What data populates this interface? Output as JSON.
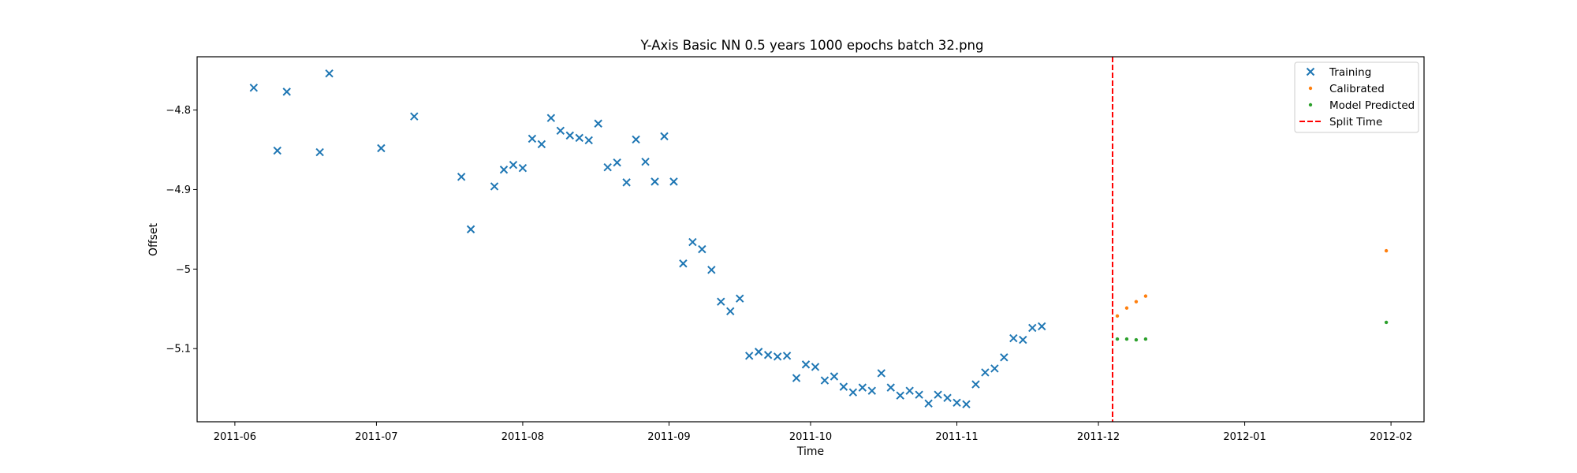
{
  "chart_data": {
    "type": "scatter",
    "title": "Y-Axis Basic NN 0.5 years 1000 epochs batch 32.png",
    "xlabel": "Time",
    "ylabel": "Offset",
    "x_ticks": [
      "2011-06",
      "2011-07",
      "2011-08",
      "2011-09",
      "2011-10",
      "2011-11",
      "2011-12",
      "2012-01",
      "2012-02"
    ],
    "y_ticks": [
      -4.8,
      -4.9,
      -5.0,
      -5.1
    ],
    "xlim": [
      "2011-05-24",
      "2012-02-08"
    ],
    "ylim": [
      -5.192,
      -4.733
    ],
    "grid": false,
    "legend_position": "top-right",
    "split_time": "2011-12-04",
    "series": [
      {
        "name": "Training",
        "marker": "x",
        "color": "#1f77b4",
        "points": [
          [
            "2011-06-05",
            -4.772
          ],
          [
            "2011-06-10",
            -4.851
          ],
          [
            "2011-06-12",
            -4.777
          ],
          [
            "2011-06-19",
            -4.853
          ],
          [
            "2011-06-21",
            -4.754
          ],
          [
            "2011-07-02",
            -4.848
          ],
          [
            "2011-07-09",
            -4.808
          ],
          [
            "2011-07-19",
            -4.884
          ],
          [
            "2011-07-21",
            -4.95
          ],
          [
            "2011-07-26",
            -4.896
          ],
          [
            "2011-07-28",
            -4.875
          ],
          [
            "2011-07-30",
            -4.869
          ],
          [
            "2011-08-01",
            -4.873
          ],
          [
            "2011-08-03",
            -4.836
          ],
          [
            "2011-08-05",
            -4.843
          ],
          [
            "2011-08-07",
            -4.81
          ],
          [
            "2011-08-09",
            -4.826
          ],
          [
            "2011-08-11",
            -4.832
          ],
          [
            "2011-08-13",
            -4.835
          ],
          [
            "2011-08-15",
            -4.838
          ],
          [
            "2011-08-17",
            -4.817
          ],
          [
            "2011-08-19",
            -4.872
          ],
          [
            "2011-08-21",
            -4.866
          ],
          [
            "2011-08-23",
            -4.891
          ],
          [
            "2011-08-25",
            -4.837
          ],
          [
            "2011-08-27",
            -4.865
          ],
          [
            "2011-08-29",
            -4.89
          ],
          [
            "2011-08-31",
            -4.833
          ],
          [
            "2011-09-02",
            -4.89
          ],
          [
            "2011-09-04",
            -4.993
          ],
          [
            "2011-09-06",
            -4.966
          ],
          [
            "2011-09-08",
            -4.975
          ],
          [
            "2011-09-10",
            -5.001
          ],
          [
            "2011-09-12",
            -5.041
          ],
          [
            "2011-09-14",
            -5.053
          ],
          [
            "2011-09-16",
            -5.037
          ],
          [
            "2011-09-18",
            -5.109
          ],
          [
            "2011-09-20",
            -5.104
          ],
          [
            "2011-09-22",
            -5.108
          ],
          [
            "2011-09-24",
            -5.11
          ],
          [
            "2011-09-26",
            -5.109
          ],
          [
            "2011-09-28",
            -5.137
          ],
          [
            "2011-09-30",
            -5.12
          ],
          [
            "2011-10-02",
            -5.123
          ],
          [
            "2011-10-04",
            -5.14
          ],
          [
            "2011-10-06",
            -5.135
          ],
          [
            "2011-10-08",
            -5.148
          ],
          [
            "2011-10-10",
            -5.155
          ],
          [
            "2011-10-12",
            -5.149
          ],
          [
            "2011-10-14",
            -5.153
          ],
          [
            "2011-10-16",
            -5.131
          ],
          [
            "2011-10-18",
            -5.149
          ],
          [
            "2011-10-20",
            -5.159
          ],
          [
            "2011-10-22",
            -5.153
          ],
          [
            "2011-10-24",
            -5.158
          ],
          [
            "2011-10-26",
            -5.169
          ],
          [
            "2011-10-28",
            -5.158
          ],
          [
            "2011-10-30",
            -5.162
          ],
          [
            "2011-11-01",
            -5.168
          ],
          [
            "2011-11-03",
            -5.17
          ],
          [
            "2011-11-05",
            -5.145
          ],
          [
            "2011-11-07",
            -5.13
          ],
          [
            "2011-11-09",
            -5.125
          ],
          [
            "2011-11-11",
            -5.111
          ],
          [
            "2011-11-13",
            -5.087
          ],
          [
            "2011-11-15",
            -5.089
          ],
          [
            "2011-11-17",
            -5.074
          ],
          [
            "2011-11-19",
            -5.072
          ]
        ]
      },
      {
        "name": "Calibrated",
        "marker": "dot",
        "color": "#ff7f0e",
        "points": [
          [
            "2011-12-05",
            -5.059
          ],
          [
            "2011-12-07",
            -5.049
          ],
          [
            "2011-12-09",
            -5.041
          ],
          [
            "2011-12-11",
            -5.034
          ],
          [
            "2012-01-31",
            -4.977
          ]
        ]
      },
      {
        "name": "Model Predicted",
        "marker": "dot",
        "color": "#2ca02c",
        "points": [
          [
            "2011-12-05",
            -5.088
          ],
          [
            "2011-12-07",
            -5.088
          ],
          [
            "2011-12-09",
            -5.089
          ],
          [
            "2011-12-11",
            -5.088
          ],
          [
            "2012-01-31",
            -5.067
          ]
        ]
      }
    ],
    "split_line": {
      "name": "Split Time",
      "color": "#ff0000",
      "style": "dashed"
    }
  }
}
